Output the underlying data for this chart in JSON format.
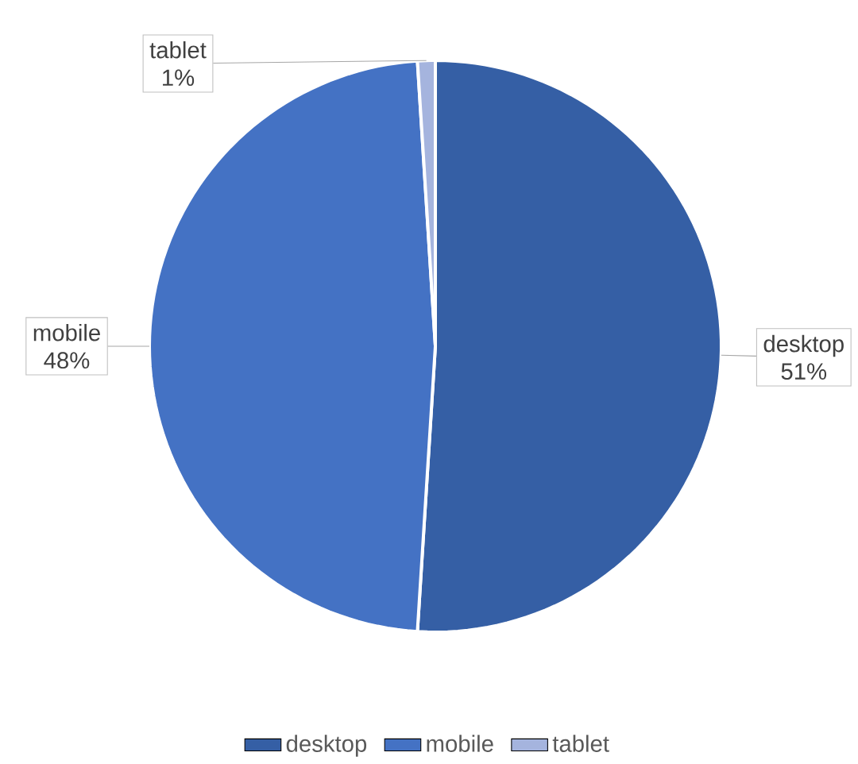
{
  "chart_data": {
    "type": "pie",
    "categories": [
      "desktop",
      "mobile",
      "tablet"
    ],
    "values": [
      51,
      48,
      1
    ],
    "value_labels": [
      "51%",
      "48%",
      "1%"
    ],
    "colors": [
      "#355fa5",
      "#4472c4",
      "#a5b4de"
    ],
    "legend": "bottom"
  }
}
